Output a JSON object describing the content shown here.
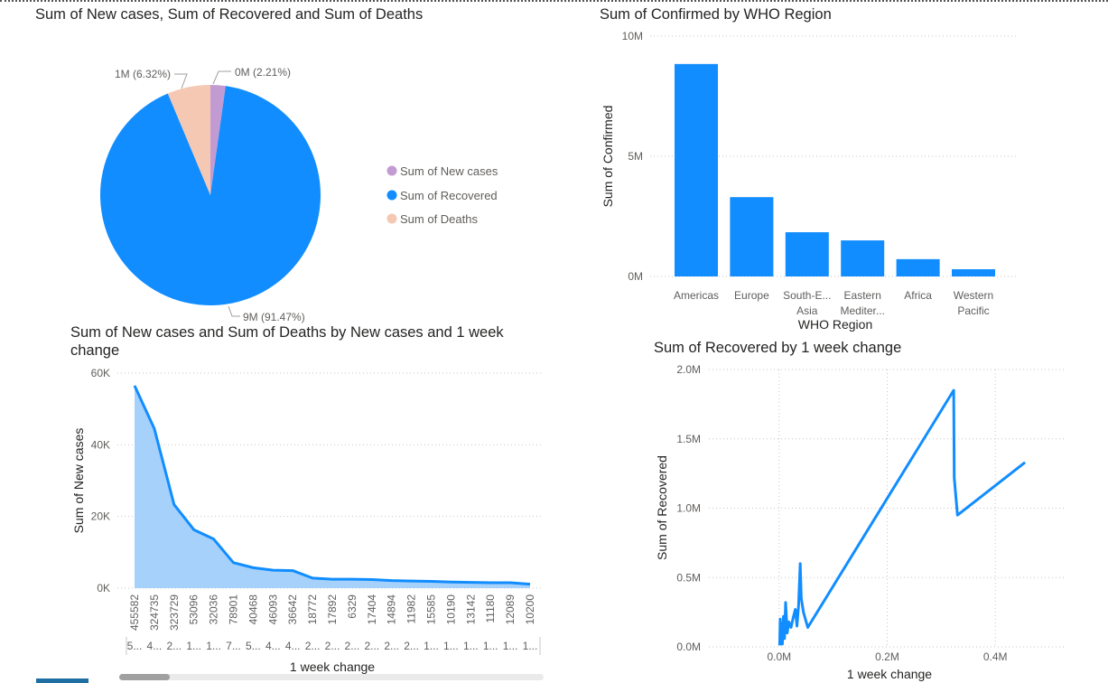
{
  "chart_data": [
    {
      "type": "pie",
      "title": "Sum of New cases, Sum of Recovered and Sum of Deaths",
      "slices": [
        {
          "name": "Sum of New cases",
          "label": "0M (2.21%)",
          "percent": 2.21,
          "color": "#c39bd3"
        },
        {
          "name": "Sum of Recovered",
          "label": "9M (91.47%)",
          "percent": 91.47,
          "color": "#118dff"
        },
        {
          "name": "Sum of Deaths",
          "label": "1M (6.32%)",
          "percent": 6.32,
          "color": "#f4c8b2"
        }
      ],
      "legend_position": "right"
    },
    {
      "type": "bar",
      "title": "Sum of Confirmed by WHO Region",
      "xlabel": "WHO Region",
      "ylabel": "Sum of Confirmed",
      "categories": [
        [
          "Americas"
        ],
        [
          "Europe"
        ],
        [
          "South-E...",
          "Asia"
        ],
        [
          "Eastern",
          "Mediter..."
        ],
        [
          "Africa"
        ],
        [
          "Western",
          "Pacific"
        ]
      ],
      "values": [
        8840000,
        3300000,
        1840000,
        1500000,
        720000,
        300000
      ],
      "ylim": [
        0,
        10000000
      ],
      "yticks": [
        {
          "v": 0,
          "label": "0M"
        },
        {
          "v": 5000000,
          "label": "5M"
        },
        {
          "v": 10000000,
          "label": "10M"
        }
      ],
      "color": "#118dff",
      "grid": true
    },
    {
      "type": "area",
      "title": "Sum of New cases and Sum of Deaths by New cases and 1 week change",
      "xlabel": "1 week change",
      "ylabel": "Sum of New cases",
      "categories": [
        "455582",
        "324735",
        "323729",
        "53096",
        "32036",
        "78901",
        "40468",
        "46093",
        "36642",
        "18772",
        "17892",
        "6329",
        "17404",
        "14894",
        "11982",
        "15585",
        "10190",
        "13142",
        "11180",
        "12089",
        "10200"
      ],
      "second_labels": [
        "5...",
        "4...",
        "2...",
        "1...",
        "1...",
        "7...",
        "5...",
        "4...",
        "4...",
        "2...",
        "2...",
        "2...",
        "2...",
        "2...",
        "2...",
        "1...",
        "1...",
        "1...",
        "1...",
        "1...",
        "1..."
      ],
      "values": [
        56500,
        44500,
        23300,
        16300,
        13700,
        7100,
        5700,
        5000,
        4900,
        2800,
        2500,
        2500,
        2400,
        2100,
        2000,
        1900,
        1700,
        1600,
        1500,
        1500,
        1100
      ],
      "ylim": [
        0,
        60000
      ],
      "yticks": [
        {
          "v": 0,
          "label": "0K"
        },
        {
          "v": 20000,
          "label": "20K"
        },
        {
          "v": 40000,
          "label": "40K"
        },
        {
          "v": 60000,
          "label": "60K"
        }
      ],
      "line_color": "#118dff",
      "fill_color": "#a6d1fb",
      "grid": true
    },
    {
      "type": "line",
      "title": "Sum of Recovered by 1 week change",
      "xlabel": "1 week change",
      "ylabel": "Sum of Recovered",
      "x": [
        1000,
        2000,
        3000,
        5000,
        6000,
        8000,
        10000,
        12000,
        15000,
        18000,
        22000,
        26000,
        30000,
        33000,
        36000,
        39000,
        41000,
        45000,
        53000,
        323000,
        324000,
        330000,
        455000
      ],
      "y": [
        10000,
        200000,
        40000,
        170000,
        20000,
        220000,
        60000,
        320000,
        100000,
        180000,
        140000,
        210000,
        270000,
        150000,
        300000,
        600000,
        350000,
        250000,
        140000,
        1850000,
        1220000,
        950000,
        1330000
      ],
      "xlim": [
        -130000,
        530000
      ],
      "ylim": [
        0,
        2000000
      ],
      "xticks": [
        {
          "v": 0,
          "label": "0.0M"
        },
        {
          "v": 200000,
          "label": "0.2M"
        },
        {
          "v": 400000,
          "label": "0.4M"
        }
      ],
      "yticks": [
        {
          "v": 0,
          "label": "0.0M"
        },
        {
          "v": 500000,
          "label": "0.5M"
        },
        {
          "v": 1000000,
          "label": "1.0M"
        },
        {
          "v": 1500000,
          "label": "1.5M"
        },
        {
          "v": 2000000,
          "label": "2.0M"
        }
      ],
      "color": "#118dff",
      "grid": true
    }
  ]
}
